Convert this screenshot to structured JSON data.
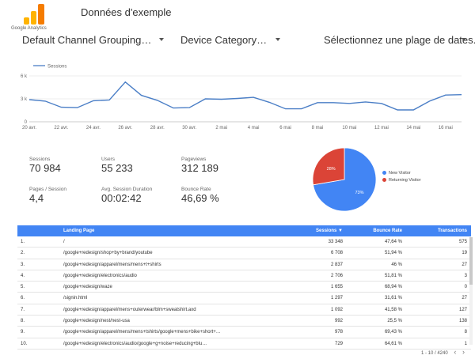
{
  "header": {
    "logo_text": "Google Analytics",
    "title": "Données d'exemple"
  },
  "controls": {
    "channel_grouping": "Default Channel Grouping…",
    "device_category": "Device Category…",
    "date_range": "Sélectionnez une plage de dates."
  },
  "colors": {
    "accent": "#4285f4",
    "returning": "#db4437",
    "logo_dark": "#f57c00",
    "logo_light": "#ffb300"
  },
  "chart_data": [
    {
      "type": "line",
      "series": [
        {
          "name": "Sessions",
          "values": [
            2900,
            2700,
            1900,
            1850,
            2750,
            2850,
            5200,
            3450,
            2800,
            1800,
            1850,
            3000,
            2950,
            3050,
            3200,
            2550,
            1700,
            1700,
            2500,
            2500,
            2400,
            2600,
            2400,
            1550,
            1550,
            2700,
            3500,
            3550
          ]
        }
      ],
      "x_ticks": [
        "20 avr.",
        "22 avr.",
        "24 avr.",
        "26 avr.",
        "28 avr.",
        "30 avr.",
        "2 mai",
        "4 mai",
        "6 mai",
        "8 mai",
        "10 mai",
        "12 mai",
        "14 mai",
        "16 mai"
      ],
      "y_ticks": [
        "0",
        "3 k",
        "6 k"
      ],
      "ylim": [
        0,
        6000
      ]
    },
    {
      "type": "pie",
      "categories": [
        "New Visitor",
        "Returning Visitor"
      ],
      "values": [
        73,
        28
      ],
      "labels": [
        "73%",
        "28%"
      ]
    }
  ],
  "kpis": [
    {
      "label": "Sessions",
      "value": "70 984"
    },
    {
      "label": "Users",
      "value": "55 233"
    },
    {
      "label": "Pageviews",
      "value": "312 189"
    },
    {
      "label": "Pages / Session",
      "value": "4,4"
    },
    {
      "label": "Avg. Session Duration",
      "value": "00:02:42"
    },
    {
      "label": "Bounce Rate",
      "value": "46,69 %"
    }
  ],
  "table": {
    "headers": {
      "page": "Landing Page",
      "sessions": "Sessions ▼",
      "bounce": "Bounce Rate",
      "transactions": "Transactions"
    },
    "rows": [
      {
        "idx": "1.",
        "page": "/",
        "sessions": "33 348",
        "bounce": "47,64 %",
        "transactions": "575"
      },
      {
        "idx": "2.",
        "page": "/google+redesign/shop+by+brand/youtube",
        "sessions": "6 708",
        "bounce": "51,94 %",
        "transactions": "19"
      },
      {
        "idx": "3.",
        "page": "/google+redesign/apparel/mens/mens+t+shirts",
        "sessions": "2 837",
        "bounce": "46 %",
        "transactions": "27"
      },
      {
        "idx": "4.",
        "page": "/google+redesign/electronics/audio",
        "sessions": "2 706",
        "bounce": "51,81 %",
        "transactions": "3"
      },
      {
        "idx": "5.",
        "page": "/google+redesign/waze",
        "sessions": "1 655",
        "bounce": "68,94 %",
        "transactions": "0"
      },
      {
        "idx": "6.",
        "page": "/signin.html",
        "sessions": "1 297",
        "bounce": "31,61 %",
        "transactions": "27"
      },
      {
        "idx": "7.",
        "page": "/google+redesign/apparel/mens+outerwear/blm+sweatshirt.axd",
        "sessions": "1 092",
        "bounce": "41,58 %",
        "transactions": "127"
      },
      {
        "idx": "8.",
        "page": "/google+redesign/nest/nest-usa",
        "sessions": "992",
        "bounce": "25,5 %",
        "transactions": "138"
      },
      {
        "idx": "9.",
        "page": "/google+redesign/apparel/mens/mens+tshirts/google+mens+bike+short+…",
        "sessions": "978",
        "bounce": "69,43 %",
        "transactions": "8"
      },
      {
        "idx": "10.",
        "page": "/google+redesign/electronics/audio/google+g+noise+reducing+blu…",
        "sessions": "729",
        "bounce": "64,61 %",
        "transactions": "1"
      }
    ]
  },
  "pager": {
    "range": "1 - 10 / 4240",
    "prev": "‹",
    "next": "›"
  }
}
